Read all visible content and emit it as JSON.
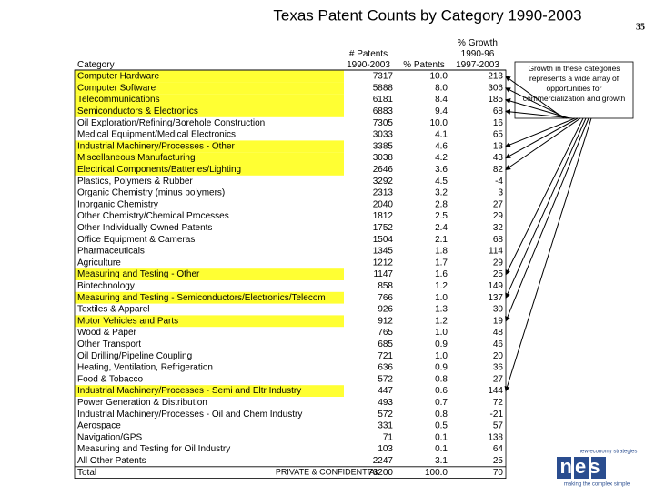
{
  "header": {
    "title": "Texas Patent Counts by Category 1990-2003",
    "page_number": "35"
  },
  "table": {
    "columns": [
      "Category",
      "# Patents\n1990-2003",
      "% Patents",
      "% Growth\n1990-96\n1997-2003"
    ],
    "rows": [
      [
        "Computer Hardware",
        "7317",
        "10.0",
        "213"
      ],
      [
        "Computer Software",
        "5888",
        "8.0",
        "306"
      ],
      [
        "Telecommunications",
        "6181",
        "8.4",
        "185"
      ],
      [
        "Semiconductors & Electronics",
        "6883",
        "9.4",
        "68"
      ],
      [
        "Oil Exploration/Refining/Borehole Construction",
        "7305",
        "10.0",
        "16"
      ],
      [
        "Medical Equipment/Medical Electronics",
        "3033",
        "4.1",
        "65"
      ],
      [
        "Industrial Machinery/Processes - Other",
        "3385",
        "4.6",
        "13"
      ],
      [
        "Miscellaneous Manufacturing",
        "3038",
        "4.2",
        "43"
      ],
      [
        "Electrical Components/Batteries/Lighting",
        "2646",
        "3.6",
        "82"
      ],
      [
        "Plastics, Polymers & Rubber",
        "3292",
        "4.5",
        "-4"
      ],
      [
        "Organic Chemistry (minus polymers)",
        "2313",
        "3.2",
        "3"
      ],
      [
        "Inorganic Chemistry",
        "2040",
        "2.8",
        "27"
      ],
      [
        "Other Chemistry/Chemical Processes",
        "1812",
        "2.5",
        "29"
      ],
      [
        "Other Individually Owned Patents",
        "1752",
        "2.4",
        "32"
      ],
      [
        "Office Equipment & Cameras",
        "1504",
        "2.1",
        "68"
      ],
      [
        "Pharmaceuticals",
        "1345",
        "1.8",
        "114"
      ],
      [
        "Agriculture",
        "1212",
        "1.7",
        "29"
      ],
      [
        "Measuring and Testing - Other",
        "1147",
        "1.6",
        "25"
      ],
      [
        "Biotechnology",
        "858",
        "1.2",
        "149"
      ],
      [
        "Measuring and Testing - Semiconductors/Electronics/Telecom",
        "766",
        "1.0",
        "137"
      ],
      [
        "Textiles & Apparel",
        "926",
        "1.3",
        "30"
      ],
      [
        "Motor Vehicles and Parts",
        "912",
        "1.2",
        "19"
      ],
      [
        "Wood & Paper",
        "765",
        "1.0",
        "48"
      ],
      [
        "Other Transport",
        "685",
        "0.9",
        "46"
      ],
      [
        "Oil Drilling/Pipeline Coupling",
        "721",
        "1.0",
        "20"
      ],
      [
        "Heating, Ventilation, Refrigeration",
        "636",
        "0.9",
        "36"
      ],
      [
        "Food & Tobacco",
        "572",
        "0.8",
        "27"
      ],
      [
        "Industrial Machinery/Processes - Semi and Eltr Industry",
        "447",
        "0.6",
        "144"
      ],
      [
        "Power Generation & Distribution",
        "493",
        "0.7",
        "72"
      ],
      [
        "Industrial Machinery/Processes - Oil and Chem Industry",
        "572",
        "0.8",
        "-21"
      ],
      [
        "Aerospace",
        "331",
        "0.5",
        "57"
      ],
      [
        "Navigation/GPS",
        "71",
        "0.1",
        "138"
      ],
      [
        "Measuring and Testing for Oil Industry",
        "103",
        "0.1",
        "64"
      ],
      [
        "All Other Patents",
        "2247",
        "3.1",
        "25"
      ],
      [
        "Total",
        "73200",
        "100.0",
        "70"
      ]
    ],
    "highlighted_rows": [
      0,
      1,
      2,
      3,
      6,
      7,
      8,
      17,
      19,
      21,
      27
    ]
  },
  "callout": "Growth in these categories represents a wide array of opportunities for commercialization and growth",
  "footer": "PRIVATE & CONFIDENTIAL",
  "logo": {
    "tagline": "new economy strategies",
    "mark": "nes",
    "slogan": "making the complex simple"
  }
}
